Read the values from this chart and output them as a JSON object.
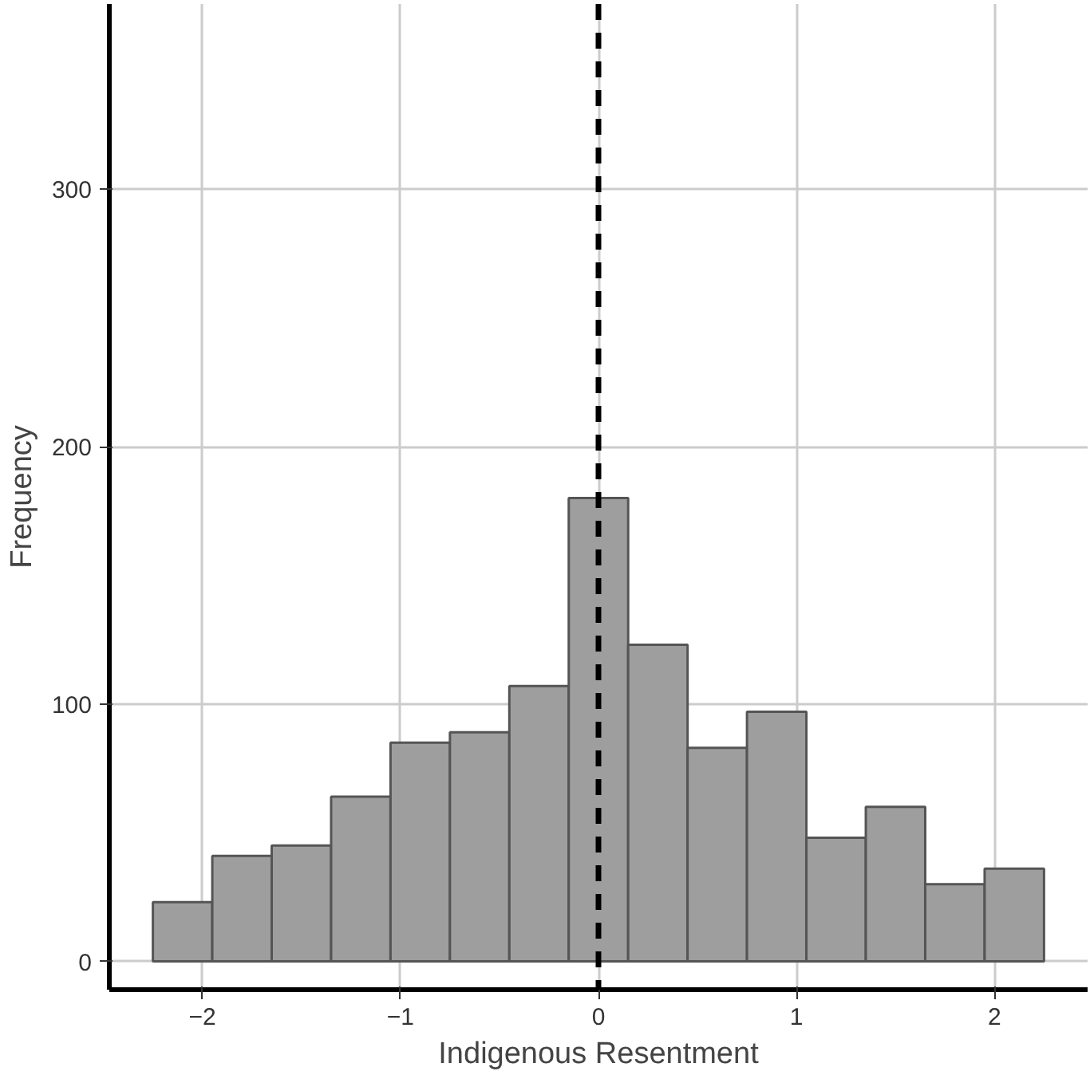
{
  "chart_data": {
    "type": "histogram",
    "xlabel": "Indigenous Resentment",
    "ylabel": "Frequency",
    "bins": [
      -2.25,
      -1.95,
      -1.65,
      -1.35,
      -1.05,
      -0.75,
      -0.45,
      -0.15,
      0.15,
      0.45,
      0.75,
      1.05,
      1.35,
      1.65,
      1.95,
      2.25
    ],
    "values": [
      23,
      41,
      45,
      64,
      85,
      89,
      107,
      180,
      123,
      83,
      97,
      48,
      60,
      30,
      36
    ],
    "color": "#9e9e9e",
    "xlim": [
      -2.47,
      2.47
    ],
    "ylim": [
      -11,
      372
    ],
    "xticks": [
      {
        "value": -2,
        "label": "−2"
      },
      {
        "value": -1,
        "label": "−1"
      },
      0,
      1,
      2
    ],
    "yticks": [
      0,
      100,
      200,
      300
    ],
    "grid": true,
    "ref_lines": [
      {
        "axis": "x",
        "value": 0,
        "color": "#000000",
        "line_style": "dashed"
      }
    ]
  }
}
